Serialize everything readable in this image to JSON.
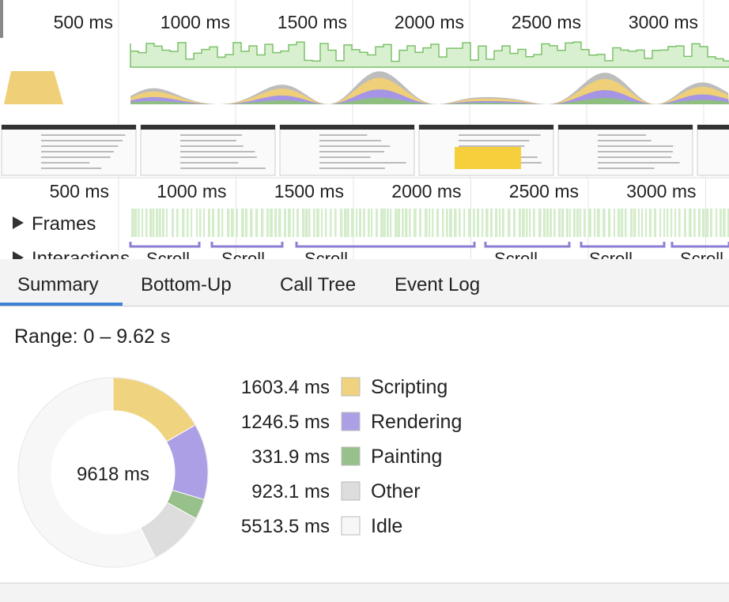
{
  "overview": {
    "ticks": [
      "500 ms",
      "1000 ms",
      "1500 ms",
      "2000 ms",
      "2500 ms",
      "3000 ms"
    ]
  },
  "timeline": {
    "ticks": [
      "500 ms",
      "1000 ms",
      "1500 ms",
      "2000 ms",
      "2500 ms",
      "3000 ms"
    ],
    "tracks": {
      "frames": "Frames",
      "interactions": "Interactions"
    },
    "interactions": [
      "Scroll",
      "Scroll",
      "Scroll",
      "Scroll",
      "Scroll",
      "Scroll"
    ]
  },
  "tabs": [
    "Summary",
    "Bottom-Up",
    "Call Tree",
    "Event Log"
  ],
  "summary": {
    "range": "Range: 0 – 9.62 s"
  },
  "chart_data": {
    "type": "donut",
    "center_label": "9618 ms",
    "categories": [
      "Scripting",
      "Rendering",
      "Painting",
      "Other",
      "Idle"
    ],
    "values": [
      1603.4,
      1246.5,
      331.9,
      923.1,
      5513.5
    ],
    "value_labels": [
      "1603.4 ms",
      "1246.5 ms",
      "331.9 ms",
      "923.1 ms",
      "5513.5 ms"
    ],
    "colors": [
      "#f0d37f",
      "#ad9fe6",
      "#97c08a",
      "#dddddd",
      "#f7f7f7"
    ]
  }
}
